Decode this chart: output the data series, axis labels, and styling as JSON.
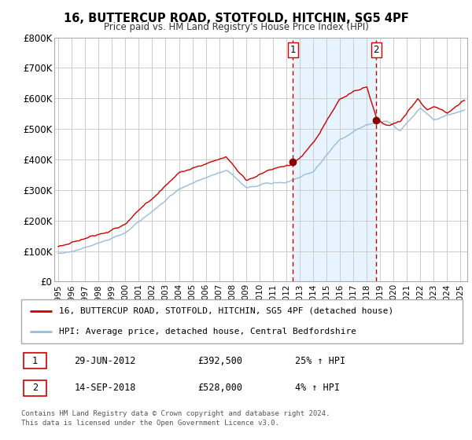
{
  "title": "16, BUTTERCUP ROAD, STOTFOLD, HITCHIN, SG5 4PF",
  "subtitle": "Price paid vs. HM Land Registry's House Price Index (HPI)",
  "ylim": [
    0,
    800000
  ],
  "yticks": [
    0,
    100000,
    200000,
    300000,
    400000,
    500000,
    600000,
    700000,
    800000
  ],
  "ytick_labels": [
    "£0",
    "£100K",
    "£200K",
    "£300K",
    "£400K",
    "£500K",
    "£600K",
    "£700K",
    "£800K"
  ],
  "xlim_start": 1994.7,
  "xlim_end": 2025.5,
  "xticks": [
    1995,
    1996,
    1997,
    1998,
    1999,
    2000,
    2001,
    2002,
    2003,
    2004,
    2005,
    2006,
    2007,
    2008,
    2009,
    2010,
    2011,
    2012,
    2013,
    2014,
    2015,
    2016,
    2017,
    2018,
    2019,
    2020,
    2021,
    2022,
    2023,
    2024,
    2025
  ],
  "line1_color": "#cc0000",
  "line2_color": "#99bbdd",
  "marker_color": "#880000",
  "sale1_x": 2012.49,
  "sale1_y": 392500,
  "sale2_x": 2018.71,
  "sale2_y": 528000,
  "vline_color": "#cc0000",
  "shade_color": "#ddeeff",
  "legend_line1": "16, BUTTERCUP ROAD, STOTFOLD, HITCHIN, SG5 4PF (detached house)",
  "legend_line2": "HPI: Average price, detached house, Central Bedfordshire",
  "annotation1_label": "1",
  "annotation1_date": "29-JUN-2012",
  "annotation1_price": "£392,500",
  "annotation1_hpi": "25% ↑ HPI",
  "annotation2_label": "2",
  "annotation2_date": "14-SEP-2018",
  "annotation2_price": "£528,000",
  "annotation2_hpi": "4% ↑ HPI",
  "footer1": "Contains HM Land Registry data © Crown copyright and database right 2024.",
  "footer2": "This data is licensed under the Open Government Licence v3.0.",
  "background_color": "#ffffff",
  "grid_color": "#cccccc"
}
